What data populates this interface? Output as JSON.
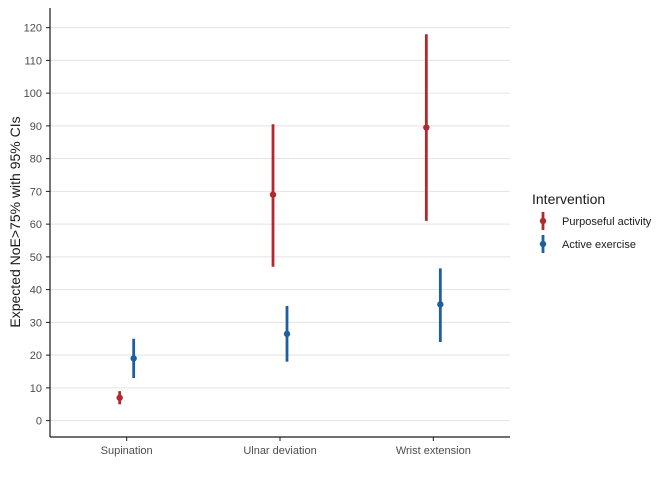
{
  "chart_data": {
    "type": "scatter",
    "subtype": "point-range",
    "title": "",
    "xlabel": "",
    "ylabel": "Expected NoE>75% with 95% CIs",
    "categories": [
      "Supination",
      "Ulnar deviation",
      "Wrist extension"
    ],
    "ylim": [
      -5,
      126
    ],
    "yticks": [
      0,
      10,
      20,
      30,
      40,
      50,
      60,
      70,
      80,
      90,
      100,
      110,
      120
    ],
    "grid": true,
    "legend": {
      "title": "Intervention",
      "position": "right"
    },
    "series": [
      {
        "name": "Purposeful activity",
        "color": "#b2282e",
        "values": [
          7,
          69,
          89.5
        ],
        "lower": [
          5,
          47,
          61
        ],
        "upper": [
          9,
          90.5,
          118
        ]
      },
      {
        "name": "Active exercise",
        "color": "#1d5f9f",
        "values": [
          19,
          26.5,
          35.5
        ],
        "lower": [
          13,
          18,
          24
        ],
        "upper": [
          25,
          35,
          46.5
        ]
      }
    ]
  }
}
